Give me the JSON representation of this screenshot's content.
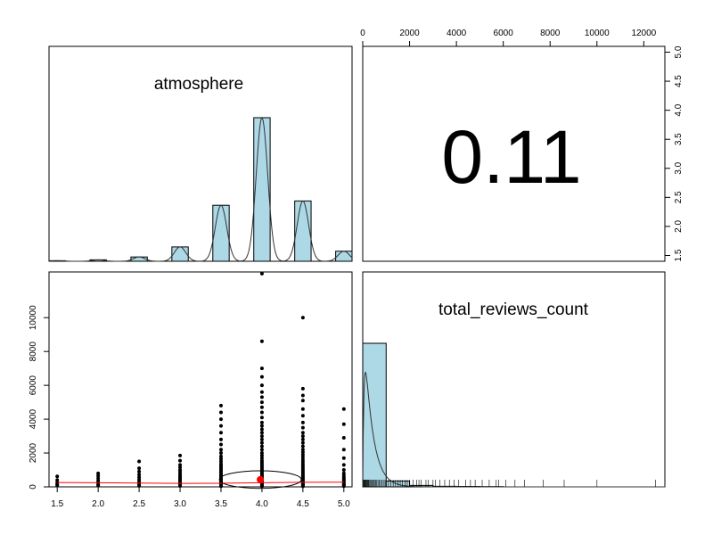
{
  "chart_data": {
    "type": "pairs-panel",
    "variables": [
      "atmosphere",
      "total_reviews_count"
    ],
    "correlation": {
      "label": "0.11",
      "value": 0.11
    },
    "histogram_atmosphere": {
      "type": "bar",
      "title": "atmosphere",
      "categories": [
        1.5,
        2.0,
        2.5,
        3.0,
        3.5,
        4.0,
        4.5,
        5.0
      ],
      "values": [
        0.004,
        0.01,
        0.03,
        0.1,
        0.39,
        1.0,
        0.42,
        0.07
      ],
      "bar_color": "#add8e6",
      "density_line": true
    },
    "histogram_total_reviews_count": {
      "type": "bar",
      "title": "total_reviews_count",
      "bins": [
        {
          "x0": 0,
          "x1": 1000,
          "value": 1.0
        },
        {
          "x0": 1000,
          "x1": 2000,
          "value": 0.04
        },
        {
          "x0": 2000,
          "x1": 3000,
          "value": 0.01
        },
        {
          "x0": 3000,
          "x1": 4000,
          "value": 0.004
        },
        {
          "x0": 4000,
          "x1": 5000,
          "value": 0.003
        },
        {
          "x0": 5000,
          "x1": 6000,
          "value": 0.002
        },
        {
          "x0": 6000,
          "x1": 7000,
          "value": 0.001
        },
        {
          "x0": 7000,
          "x1": 8000,
          "value": 0.001
        },
        {
          "x0": 8000,
          "x1": 9000,
          "value": 0.001
        },
        {
          "x0": 9000,
          "x1": 10000,
          "value": 0.0005
        },
        {
          "x0": 10000,
          "x1": 11000,
          "value": 0.0005
        },
        {
          "x0": 11000,
          "x1": 12000,
          "value": 0.0003
        },
        {
          "x0": 12000,
          "x1": 13000,
          "value": 0.0003
        }
      ],
      "bar_color": "#add8e6",
      "density_line": true,
      "rug": [
        20,
        40,
        60,
        80,
        100,
        120,
        150,
        180,
        200,
        230,
        260,
        300,
        340,
        380,
        420,
        460,
        500,
        550,
        600,
        650,
        700,
        760,
        820,
        880,
        950,
        1000,
        1100,
        1200,
        1300,
        1400,
        1500,
        1600,
        1700,
        1800,
        1900,
        2000,
        2150,
        2300,
        2400,
        2500,
        2700,
        2800,
        3000,
        3100,
        3300,
        3500,
        3700,
        3900,
        4100,
        4400,
        4600,
        4800,
        5100,
        5400,
        5700,
        5800,
        6100,
        6500,
        6900,
        7700,
        8600,
        10000,
        12500
      ]
    },
    "scatter": {
      "type": "scatter",
      "xlim": [
        1.4,
        5.1
      ],
      "ylim": [
        0,
        12700
      ],
      "x_ticks": [
        1.5,
        2.0,
        2.5,
        3.0,
        3.5,
        4.0,
        4.5,
        5.0
      ],
      "y_ticks": [
        0,
        2000,
        4000,
        6000,
        8000,
        10000
      ],
      "points": [
        {
          "x": 1.5,
          "y": [
            80,
            150,
            250,
            400,
            620
          ]
        },
        {
          "x": 2.0,
          "y": [
            80,
            150,
            250,
            350,
            500,
            650,
            800
          ]
        },
        {
          "x": 2.5,
          "y": [
            60,
            120,
            200,
            300,
            420,
            560,
            720,
            900,
            1100,
            1500
          ]
        },
        {
          "x": 3.0,
          "y": [
            50,
            100,
            150,
            200,
            260,
            330,
            400,
            480,
            560,
            650,
            760,
            880,
            1000,
            1150,
            1300,
            1550,
            1850
          ]
        },
        {
          "x": 3.5,
          "y": [
            40,
            80,
            120,
            160,
            200,
            250,
            300,
            350,
            400,
            460,
            520,
            580,
            650,
            720,
            800,
            880,
            960,
            1050,
            1150,
            1250,
            1350,
            1500,
            1650,
            1800,
            2000,
            2200,
            2500,
            2800,
            3200,
            3600,
            4000,
            4400,
            4800
          ]
        },
        {
          "x": 4.0,
          "y": [
            30,
            60,
            100,
            140,
            180,
            220,
            260,
            300,
            350,
            400,
            450,
            500,
            560,
            620,
            680,
            750,
            820,
            900,
            980,
            1060,
            1150,
            1250,
            1350,
            1450,
            1550,
            1700,
            1850,
            2000,
            2200,
            2400,
            2600,
            2800,
            3000,
            3200,
            3400,
            3600,
            3800,
            4100,
            4400,
            4700,
            5000,
            5300,
            5600,
            6000,
            6500,
            7000,
            8600,
            12600
          ]
        },
        {
          "x": 4.5,
          "y": [
            30,
            60,
            100,
            140,
            180,
            230,
            280,
            330,
            380,
            440,
            500,
            570,
            640,
            710,
            790,
            870,
            960,
            1050,
            1150,
            1250,
            1360,
            1480,
            1600,
            1750,
            1900,
            2050,
            2200,
            2400,
            2600,
            2800,
            3000,
            3200,
            3500,
            3800,
            4200,
            4600,
            5100,
            5400,
            5800,
            10000
          ]
        },
        {
          "x": 5.0,
          "y": [
            40,
            80,
            130,
            180,
            240,
            300,
            380,
            460,
            550,
            650,
            800,
            1000,
            1300,
            1700,
            2200,
            2900,
            3700,
            4600
          ]
        }
      ],
      "mean_point": {
        "x": 3.98,
        "y": 430,
        "color": "#ff0000"
      },
      "ellipse": {
        "cx": 3.98,
        "cy": 430,
        "rx": 0.5,
        "ry": 520
      },
      "smooth_line": {
        "x": [
          1.5,
          2.0,
          2.5,
          3.0,
          3.5,
          4.0,
          4.5,
          5.0
        ],
        "y": [
          260,
          240,
          220,
          205,
          210,
          240,
          270,
          280
        ],
        "color": "#ff0000"
      }
    },
    "top_axis": {
      "ticks": [
        0,
        2000,
        4000,
        6000,
        8000,
        10000,
        12000
      ],
      "xlim": [
        0,
        12900
      ]
    },
    "right_axis": {
      "ticks": [
        1.5,
        2.0,
        2.5,
        3.0,
        3.5,
        4.0,
        4.5,
        5.0
      ],
      "ylim": [
        1.4,
        5.1
      ]
    }
  }
}
